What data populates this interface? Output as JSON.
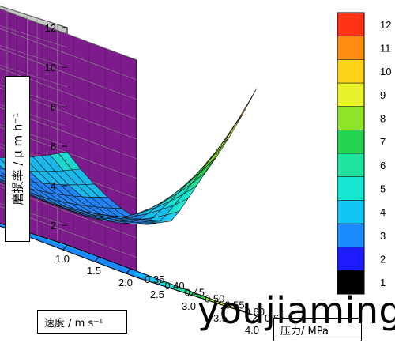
{
  "chart_data": {
    "type": "surface",
    "axes": {
      "wear_rate": {
        "label": "磨损率 / μ m h⁻¹",
        "ticks": [
          2,
          4,
          6,
          8,
          10,
          12
        ],
        "range": [
          1,
          12
        ]
      },
      "speed": {
        "label": "速度 / m s⁻¹",
        "ticks": [
          "1.0",
          "1.5",
          "2.0",
          "2.5",
          "3.0",
          "3.5",
          "4.0"
        ],
        "range": [
          1.0,
          4.0
        ]
      },
      "pressure": {
        "label": "压力/ MPa",
        "ticks": [
          "0.35",
          "0.40",
          "0.45",
          "0.50",
          "0.55",
          "0.60",
          "0.65"
        ],
        "range": [
          0.35,
          0.65
        ]
      }
    },
    "colorbar": {
      "ticks": [
        1,
        2,
        3,
        4,
        5,
        6,
        7,
        8,
        9,
        10,
        11,
        12
      ],
      "range": [
        1,
        12
      ],
      "colors": [
        "#000000",
        "#1c1cff",
        "#1b8cff",
        "#12c4f2",
        "#14e6d2",
        "#1de39a",
        "#24d34f",
        "#8fe52a",
        "#e8f22a",
        "#ffd21a",
        "#ff8c10",
        "#ff3216"
      ]
    },
    "surface_samples": [
      {
        "speed": 1.0,
        "pressure": 0.35,
        "wear_rate": 6.2
      },
      {
        "speed": 1.0,
        "pressure": 0.65,
        "wear_rate": 5.6
      },
      {
        "speed": 2.4,
        "pressure": 0.45,
        "wear_rate": 3.0
      },
      {
        "speed": 4.0,
        "pressure": 0.35,
        "wear_rate": 6.6
      },
      {
        "speed": 4.0,
        "pressure": 0.65,
        "wear_rate": 11.6
      }
    ],
    "wall_colors": {
      "left": "#c8c8c8",
      "back": "#7d1a8c",
      "floor": "#ffffff"
    }
  },
  "overlay": {
    "watermark": "youjiaming"
  }
}
